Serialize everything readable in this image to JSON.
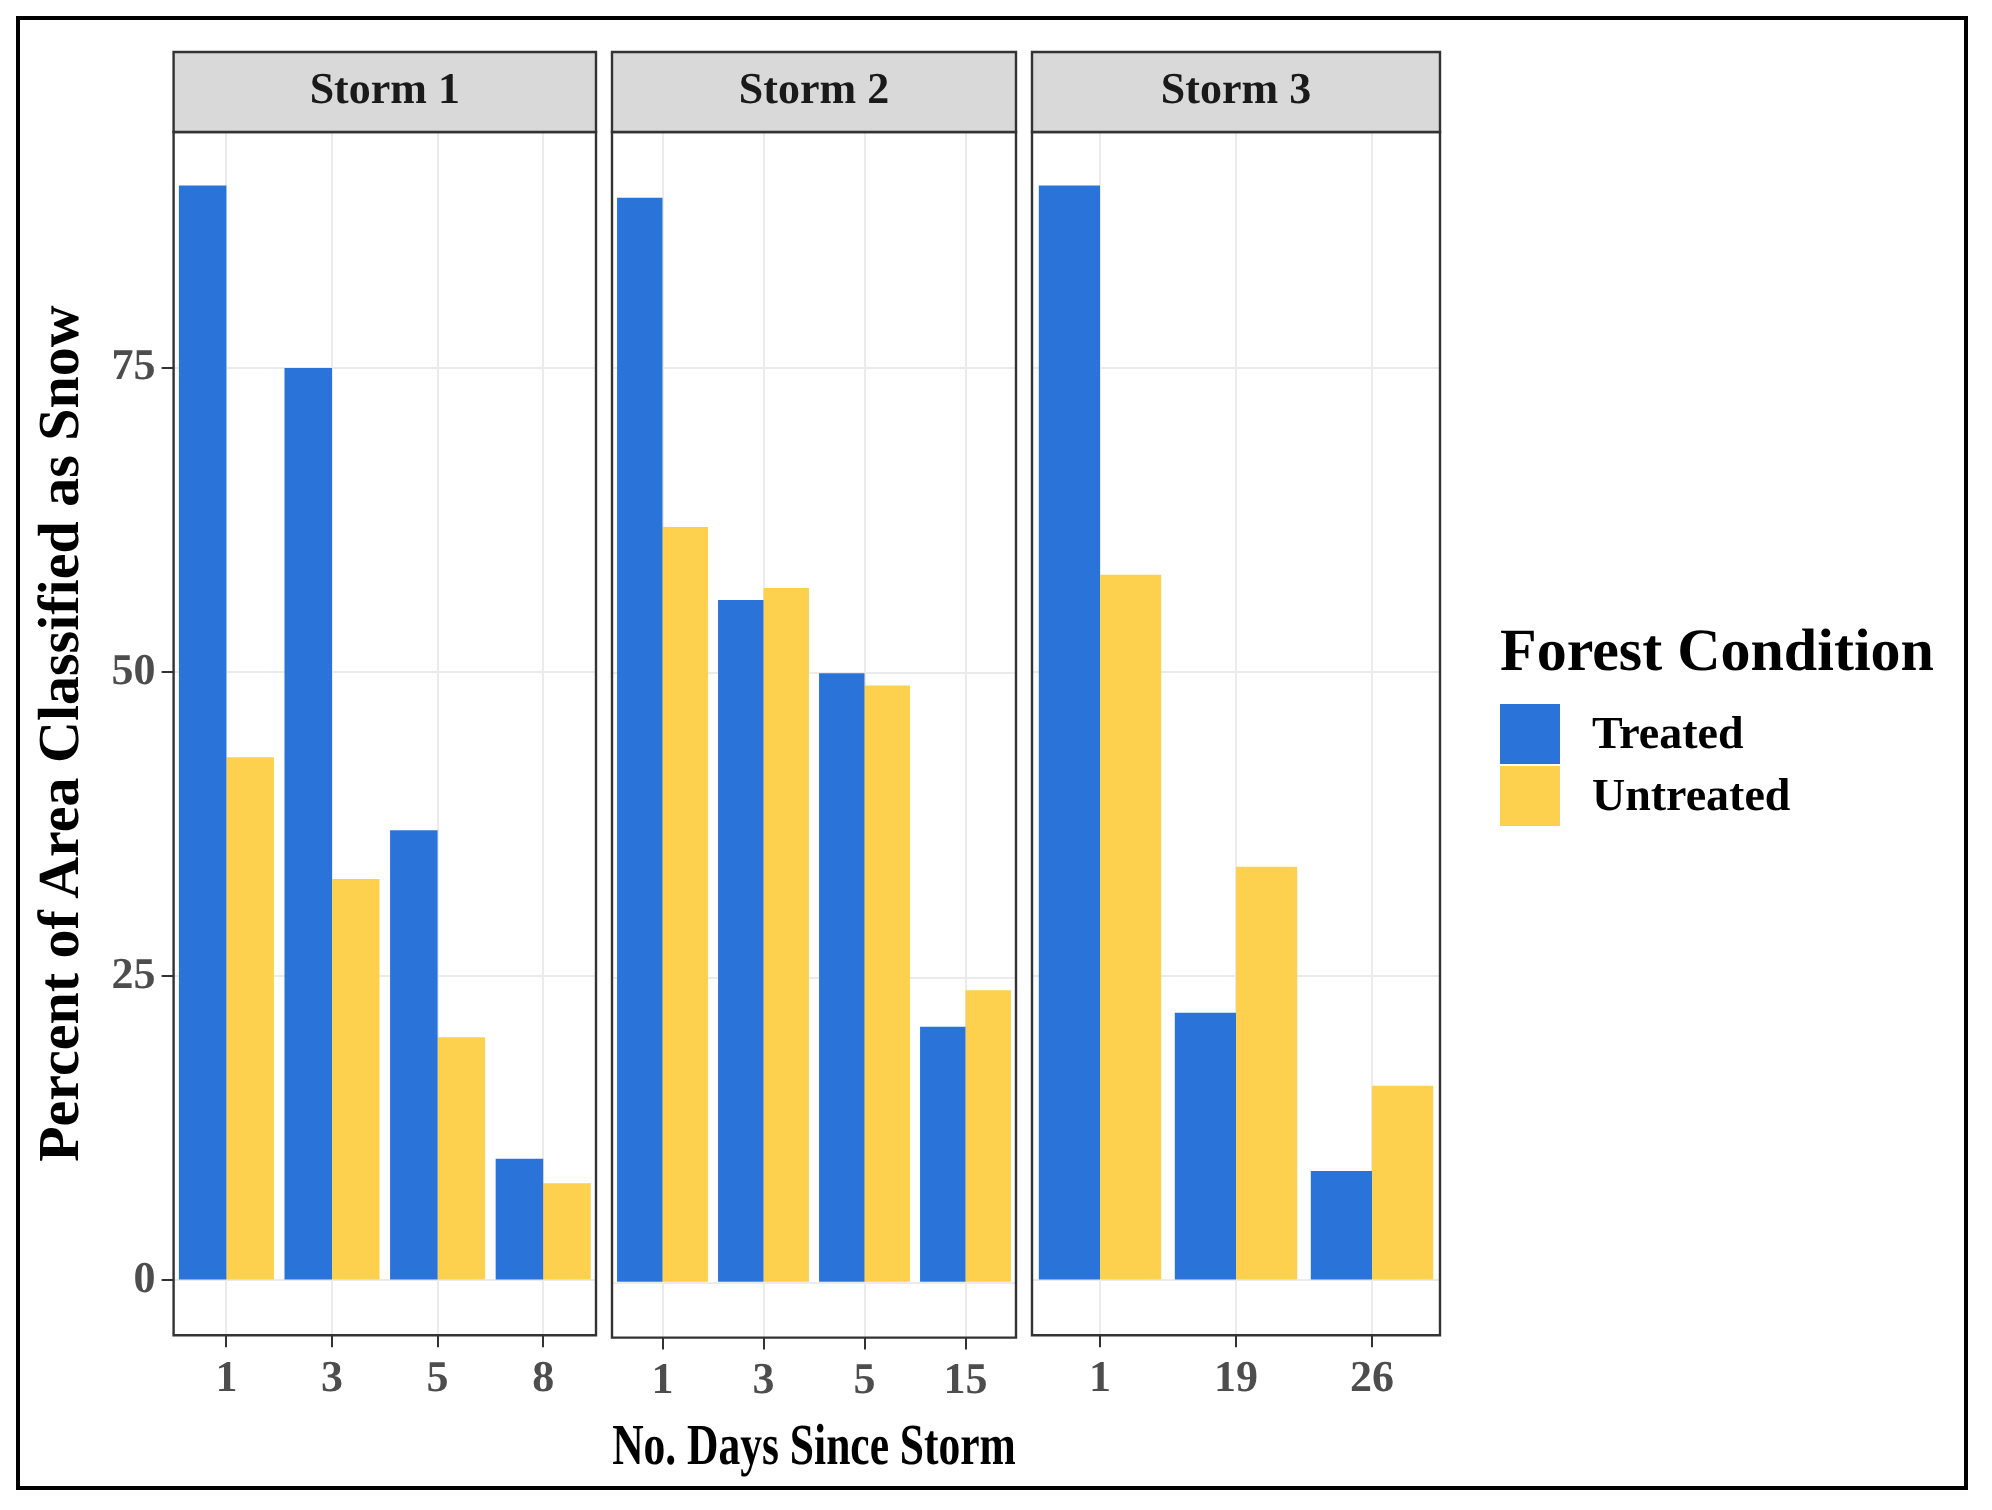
{
  "chart_data": [
    {
      "type": "bar",
      "title": "Storm 1",
      "ylabel": "Percent of Area Classified as Snow",
      "categories": [
        "1",
        "3",
        "5",
        "8"
      ],
      "series": [
        {
          "color": "#2a74d9",
          "values": [
            90,
            75,
            37,
            10
          ]
        },
        {
          "color": "#fdd14d",
          "values": [
            43,
            33,
            20,
            8
          ]
        }
      ],
      "ylim": [
        -4.5,
        94.4
      ],
      "yticks": [
        0,
        25,
        50,
        75
      ],
      "grid": true
    },
    {
      "type": "bar",
      "title": "Storm 2",
      "xlabel": "No. Days Since Storm",
      "categories": [
        "1",
        "3",
        "5",
        "15"
      ],
      "series": [
        {
          "color": "#2a74d9",
          "values": [
            89,
            56,
            50,
            21
          ]
        },
        {
          "color": "#fdd14d",
          "values": [
            62,
            57,
            49,
            24
          ]
        }
      ],
      "ylim": [
        -4.5,
        94.4
      ],
      "yticks": [
        0,
        25,
        50,
        75
      ],
      "grid": true,
      "tick_labels": "x"
    },
    {
      "type": "bar",
      "title": "Storm 3",
      "legend_title": "Forest Condition",
      "categories": [
        "1",
        "19",
        "26"
      ],
      "series": [
        {
          "name": "Treated",
          "color": "#2a74d9",
          "values": [
            90,
            22,
            9
          ]
        },
        {
          "name": "Untreated",
          "color": "#fdd14d",
          "values": [
            58,
            34,
            16
          ]
        }
      ],
      "ylim": [
        -4.5,
        94.4
      ],
      "yticks": [
        0,
        25,
        50,
        75
      ],
      "grid": true,
      "tick_labels": "x",
      "legend": "right"
    }
  ]
}
